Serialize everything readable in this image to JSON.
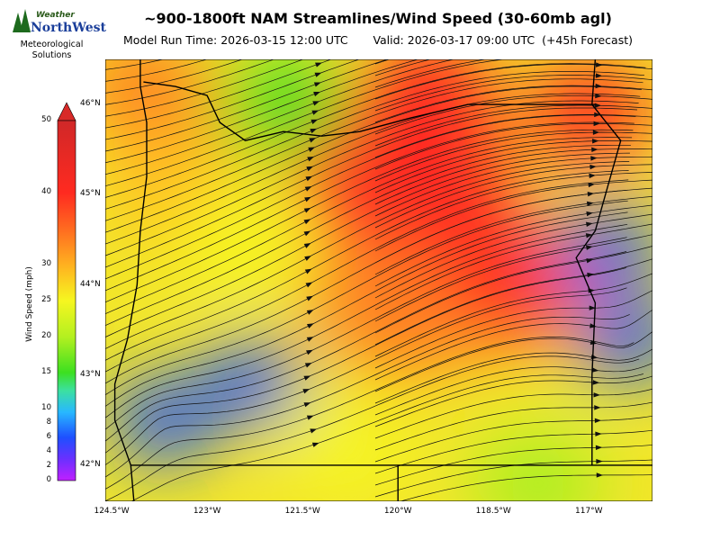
{
  "title": "~900-1800ft NAM Streamlines/Wind Speed (30-60mb agl)",
  "subtitle_run": "Model Run Time: 2026-03-15 12:00 UTC",
  "subtitle_valid": "Valid: 2026-03-17 09:00 UTC  (+45h Forecast)",
  "logo": {
    "top": "Weather",
    "brand": "NorthWest",
    "caption1": "Meteorological",
    "caption2": "Solutions"
  },
  "colorbar": {
    "label": "Wind Speed (mph)",
    "ticks": [
      "0",
      "2",
      "4",
      "6",
      "8",
      "10",
      "15",
      "20",
      "25",
      "30",
      "40",
      "50"
    ],
    "colors": [
      "#c020ff",
      "#1e50ff",
      "#2ab0ff",
      "#28e6a0",
      "#3ce020",
      "#a8f020",
      "#f6f620",
      "#ffc020",
      "#ff8020",
      "#ff2a20",
      "#d82a28"
    ]
  },
  "lat_labels": [
    "46°N",
    "45°N",
    "44°N",
    "43°N",
    "42°N"
  ],
  "lon_labels": [
    "124.5°W",
    "123°W",
    "121.5°W",
    "120°W",
    "118.5°W",
    "117°W"
  ],
  "map": {
    "bounds": {
      "lon_min": -124.6,
      "lon_max": -116.0,
      "lat_min": 41.6,
      "lat_max": 46.5
    },
    "speed_blobs": [
      {
        "lon": -119.5,
        "lat": 46.2,
        "mph": 45
      },
      {
        "lon": -117.0,
        "lat": 45.9,
        "mph": 44
      },
      {
        "lon": -120.4,
        "lat": 45.0,
        "mph": 44
      },
      {
        "lon": -119.0,
        "lat": 44.7,
        "mph": 42
      },
      {
        "lon": -118.2,
        "lat": 44.0,
        "mph": 40
      },
      {
        "lon": -120.0,
        "lat": 43.5,
        "mph": 32
      },
      {
        "lon": -124.0,
        "lat": 46.2,
        "mph": 30
      },
      {
        "lon": -121.8,
        "lat": 46.0,
        "mph": 14
      },
      {
        "lon": -122.3,
        "lat": 42.9,
        "mph": 6
      },
      {
        "lon": -123.7,
        "lat": 42.5,
        "mph": 3
      },
      {
        "lon": -116.4,
        "lat": 43.4,
        "mph": 5
      },
      {
        "lon": -116.7,
        "lat": 44.4,
        "mph": 6
      },
      {
        "lon": -117.8,
        "lat": 41.8,
        "mph": 18
      },
      {
        "lon": -120.8,
        "lat": 42.2,
        "mph": 22
      },
      {
        "lon": -122.5,
        "lat": 44.5,
        "mph": 24
      }
    ]
  }
}
